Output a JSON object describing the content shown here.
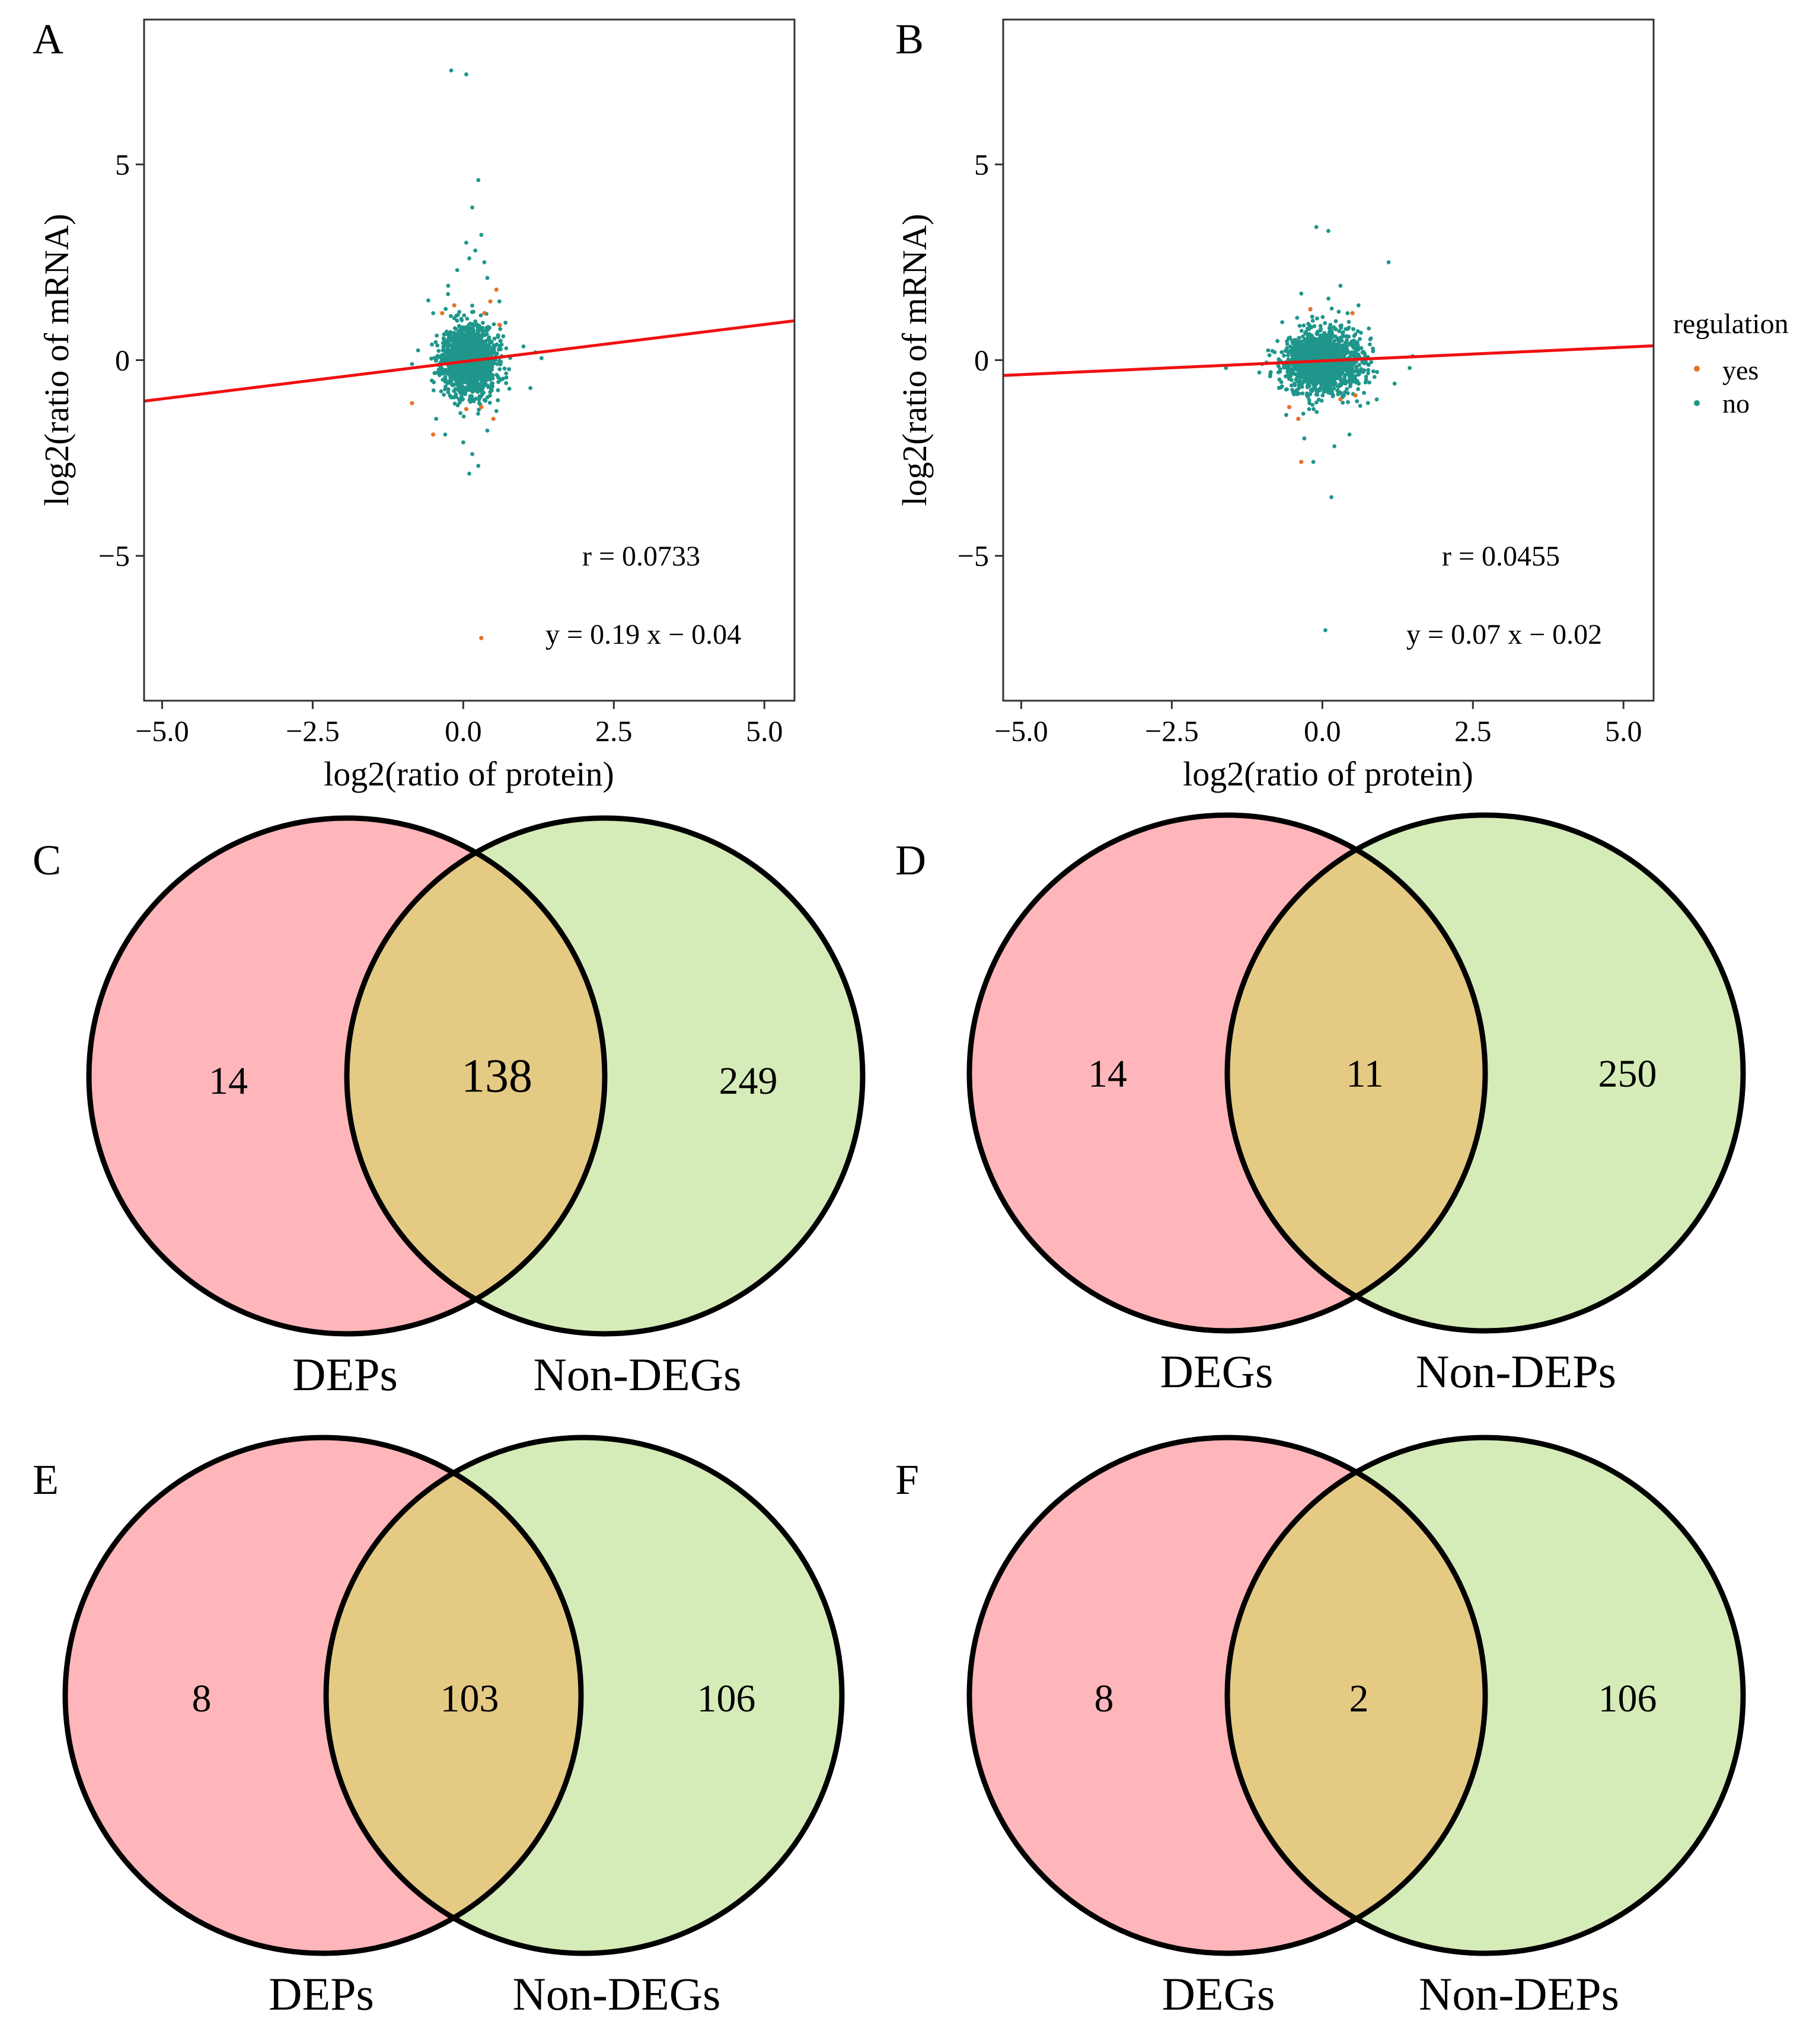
{
  "legend": {
    "title": "regulation",
    "entries": [
      {
        "label": "yes",
        "color": "#E8702A"
      },
      {
        "label": "no",
        "color": "#1F968B"
      }
    ]
  },
  "chart_data": [
    {
      "panel": "A",
      "type": "scatter",
      "xlabel": "log2(ratio of protein)",
      "ylabel": "log2(ratio of mRNA)",
      "xlim": [
        -5.3,
        5.5
      ],
      "ylim": [
        -8.7,
        8.7
      ],
      "xticks": [
        -5.0,
        -2.5,
        0.0,
        2.5,
        5.0
      ],
      "xtick_labels": [
        "−5.0",
        "−2.5",
        "0.0",
        "2.5",
        "5.0"
      ],
      "yticks": [
        5,
        0,
        -5
      ],
      "ytick_labels": [
        "5",
        "0",
        "−5"
      ],
      "fit": {
        "slope": 0.19,
        "intercept": -0.04
      },
      "annotations": {
        "r": "r =  0.0733",
        "equation": "y =  0.19 x − 0.04"
      },
      "cluster": {
        "cx": 0.1,
        "cy": 0.0,
        "sdx": 0.22,
        "sdy": 0.45,
        "n": 1500,
        "seed": 11
      },
      "outliers_no": [
        [
          -0.2,
          7.4
        ],
        [
          0.05,
          7.3
        ],
        [
          0.25,
          4.6
        ],
        [
          0.15,
          3.9
        ],
        [
          0.3,
          3.2
        ],
        [
          0.05,
          3.0
        ],
        [
          0.2,
          2.8
        ],
        [
          0.1,
          2.6
        ],
        [
          0.35,
          2.5
        ],
        [
          -0.1,
          2.3
        ],
        [
          0.4,
          2.1
        ],
        [
          -0.25,
          1.9
        ],
        [
          0.15,
          -2.4
        ],
        [
          0.0,
          -2.1
        ],
        [
          0.25,
          -2.7
        ],
        [
          0.1,
          -2.9
        ],
        [
          -0.3,
          -1.9
        ],
        [
          0.4,
          -1.8
        ],
        [
          1.3,
          0.05
        ],
        [
          1.2,
          0.2
        ],
        [
          -0.85,
          -0.1
        ],
        [
          -0.75,
          0.25
        ],
        [
          1.0,
          0.35
        ],
        [
          -0.5,
          1.2
        ],
        [
          0.6,
          1.5
        ],
        [
          0.55,
          -1.3
        ],
        [
          -0.45,
          -1.5
        ]
      ],
      "points_yes": [
        [
          0.55,
          1.8
        ],
        [
          0.45,
          1.5
        ],
        [
          0.35,
          1.2
        ],
        [
          -0.35,
          1.2
        ],
        [
          -0.15,
          1.4
        ],
        [
          -0.85,
          -1.1
        ],
        [
          0.3,
          -1.2
        ],
        [
          0.5,
          -1.5
        ],
        [
          0.05,
          -1.25
        ],
        [
          -0.5,
          -1.9
        ],
        [
          0.3,
          -7.1
        ],
        [
          0.6,
          0.9
        ]
      ]
    },
    {
      "panel": "B",
      "type": "scatter",
      "xlabel": "log2(ratio of protein)",
      "ylabel": "log2(ratio of mRNA)",
      "xlim": [
        -5.3,
        5.5
      ],
      "ylim": [
        -8.7,
        8.7
      ],
      "xticks": [
        -5.0,
        -2.5,
        0.0,
        2.5,
        5.0
      ],
      "xtick_labels": [
        "−5.0",
        "−2.5",
        "0.0",
        "2.5",
        "5.0"
      ],
      "yticks": [
        5,
        0,
        -5
      ],
      "ytick_labels": [
        "5",
        "0",
        "−5"
      ],
      "fit": {
        "slope": 0.07,
        "intercept": -0.02
      },
      "annotations": {
        "r": "r =  0.0455",
        "equation": "y =  0.07 x − 0.02"
      },
      "cluster": {
        "cx": 0.0,
        "cy": -0.05,
        "sdx": 0.32,
        "sdy": 0.4,
        "n": 1500,
        "seed": 29
      },
      "outliers_no": [
        [
          -0.1,
          3.4
        ],
        [
          0.1,
          3.3
        ],
        [
          1.1,
          2.5
        ],
        [
          0.15,
          -3.5
        ],
        [
          0.05,
          -6.9
        ],
        [
          -0.15,
          -2.6
        ],
        [
          0.2,
          -2.2
        ],
        [
          -0.3,
          -2.0
        ],
        [
          0.45,
          -1.9
        ],
        [
          1.5,
          0.1
        ],
        [
          1.45,
          -0.2
        ],
        [
          -1.0,
          -0.1
        ],
        [
          -0.9,
          0.25
        ],
        [
          -1.6,
          -0.2
        ],
        [
          0.3,
          1.9
        ],
        [
          -0.35,
          1.7
        ],
        [
          0.6,
          1.4
        ],
        [
          1.2,
          -0.6
        ],
        [
          -0.6,
          -1.4
        ]
      ],
      "points_yes": [
        [
          -0.55,
          -1.2
        ],
        [
          -0.4,
          -1.5
        ],
        [
          0.5,
          1.2
        ],
        [
          -0.35,
          -2.6
        ],
        [
          0.3,
          -1.0
        ],
        [
          -0.2,
          1.3
        ],
        [
          0.55,
          -0.9
        ]
      ]
    },
    {
      "panel": "C",
      "type": "venn",
      "sets": [
        "DEPs",
        "Non-DEGs"
      ],
      "values": {
        "only_a": "14",
        "both": "138",
        "only_b": "249"
      }
    },
    {
      "panel": "D",
      "type": "venn",
      "sets": [
        "DEGs",
        "Non-DEPs"
      ],
      "values": {
        "only_a": "14",
        "both": "11",
        "only_b": "250"
      }
    },
    {
      "panel": "E",
      "type": "venn",
      "sets": [
        "DEPs",
        "Non-DEGs"
      ],
      "values": {
        "only_a": "8",
        "both": "103",
        "only_b": "106"
      }
    },
    {
      "panel": "F",
      "type": "venn",
      "sets": [
        "DEGs",
        "Non-DEPs"
      ],
      "values": {
        "only_a": "8",
        "both": "2",
        "only_b": "106"
      }
    }
  ]
}
